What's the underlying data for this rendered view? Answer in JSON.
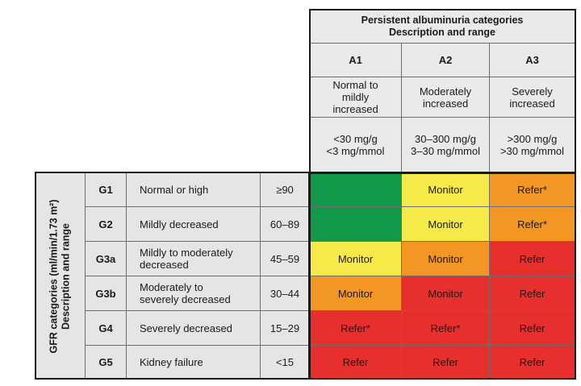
{
  "albuminuria_header": {
    "title_line1": "Persistent albuminuria categories",
    "title_line2": "Description and range"
  },
  "albuminuria_categories": [
    {
      "code": "A1",
      "desc_line1": "Normal to",
      "desc_line2": "mildly",
      "desc_line3": "increased",
      "range_line1": "<30 mg/g",
      "range_line2": "<3 mg/mmol"
    },
    {
      "code": "A2",
      "desc_line1": "Moderately",
      "desc_line2": "increased",
      "range_line1": "30–300 mg/g",
      "range_line2": "3–30 mg/mmol"
    },
    {
      "code": "A3",
      "desc_line1": "Severely",
      "desc_line2": "increased",
      "range_line1": ">300 mg/g",
      "range_line2": ">30 mg/mmol"
    }
  ],
  "gfr_header": {
    "line1": "GFR categories (ml/min/1.73 m²)",
    "line2": "Description and range"
  },
  "gfr_rows": [
    {
      "code": "G1",
      "desc_line1": "Normal or high",
      "desc_line2": "",
      "range": "≥90",
      "cells": [
        "",
        "Monitor",
        "Refer*"
      ],
      "colors": [
        "green",
        "yellow",
        "orange"
      ]
    },
    {
      "code": "G2",
      "desc_line1": "Mildly decreased",
      "desc_line2": "",
      "range": "60–89",
      "cells": [
        "",
        "Monitor",
        "Refer*"
      ],
      "colors": [
        "green",
        "yellow",
        "orange"
      ]
    },
    {
      "code": "G3a",
      "desc_line1": "Mildly to moderately",
      "desc_line2": "decreased",
      "range": "45–59",
      "cells": [
        "Monitor",
        "Monitor",
        "Refer"
      ],
      "colors": [
        "yellow",
        "orange",
        "red"
      ]
    },
    {
      "code": "G3b",
      "desc_line1": "Moderately to",
      "desc_line2": "severely decreased",
      "range": "30–44",
      "cells": [
        "Monitor",
        "Monitor",
        "Refer"
      ],
      "colors": [
        "orange",
        "red",
        "red"
      ]
    },
    {
      "code": "G4",
      "desc_line1": "Severely decreased",
      "desc_line2": "",
      "range": "15–29",
      "cells": [
        "Refer*",
        "Refer*",
        "Refer"
      ],
      "colors": [
        "red",
        "red",
        "red"
      ]
    },
    {
      "code": "G5",
      "desc_line1": "Kidney failure",
      "desc_line2": "",
      "range": "<15",
      "cells": [
        "Refer",
        "Refer",
        "Refer"
      ],
      "colors": [
        "red",
        "red",
        "red"
      ]
    }
  ],
  "colors": {
    "green": "#139a48",
    "yellow": "#f5ea4a",
    "orange": "#f49624",
    "red": "#e7302e",
    "header_grey": "#e4e5e5"
  }
}
